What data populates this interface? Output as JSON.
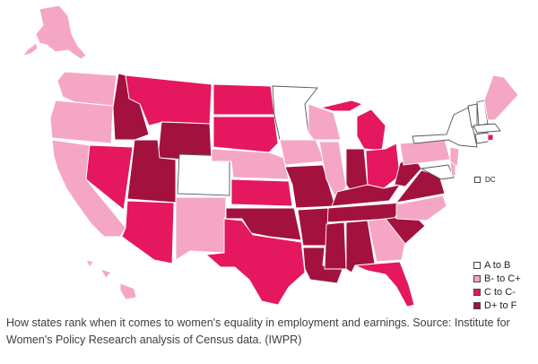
{
  "categories": {
    "a_to_b": {
      "label": "A to B",
      "color": "#ffffff"
    },
    "b_to_c": {
      "label": "B- to C+",
      "color": "#f5a6c4"
    },
    "c_to_c": {
      "label": "C to C-",
      "color": "#e4175f"
    },
    "d_to_f": {
      "label": "D+ to F",
      "color": "#a3123f"
    }
  },
  "dc": {
    "label": "DC"
  },
  "caption": "How states rank when it comes to women's equality in employment and earnings. Source: Institute for Women's Policy Research analysis of Census data. (IWPR)"
}
